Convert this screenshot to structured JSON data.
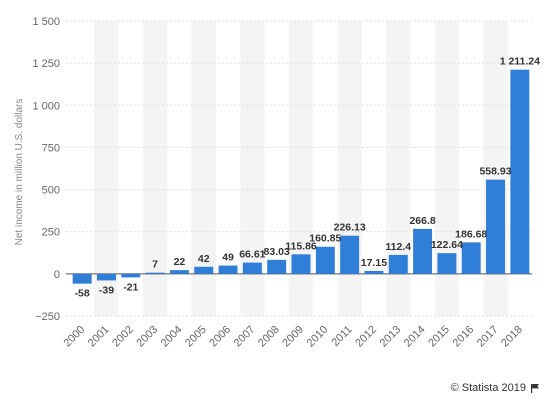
{
  "chart_data": {
    "type": "bar",
    "categories": [
      "2000",
      "2001",
      "2002",
      "2003",
      "2004",
      "2005",
      "2006",
      "2007",
      "2008",
      "2009",
      "2010",
      "2011",
      "2012",
      "2013",
      "2014",
      "2015",
      "2016",
      "2017",
      "2018"
    ],
    "values": [
      -58,
      -39,
      -21,
      7,
      22,
      42,
      49,
      66.61,
      83.03,
      115.86,
      160.85,
      226.13,
      17.15,
      112.4,
      266.8,
      122.64,
      186.68,
      558.93,
      1211.24
    ],
    "value_labels": [
      "-58",
      "-39",
      "-21",
      "7",
      "22",
      "42",
      "49",
      "66.61",
      "83.03",
      "115.86",
      "160.85",
      "226.13",
      "17.15",
      "112.4",
      "266.8",
      "122.64",
      "186.68",
      "558.93",
      "1 211.24"
    ],
    "ylabel": "Net income in million U.S. dollars",
    "ylim": [
      -250,
      1500
    ],
    "yticks": [
      -250,
      0,
      250,
      500,
      750,
      1000,
      1250,
      1500
    ],
    "ytick_labels": [
      "−250",
      "0",
      "250",
      "500",
      "750",
      "1 000",
      "1 250",
      "1 500"
    ],
    "bar_color": "#2f7ed8",
    "band_color": "#f4f4f4",
    "grid": true
  },
  "footer": {
    "credit": "© Statista 2019"
  }
}
